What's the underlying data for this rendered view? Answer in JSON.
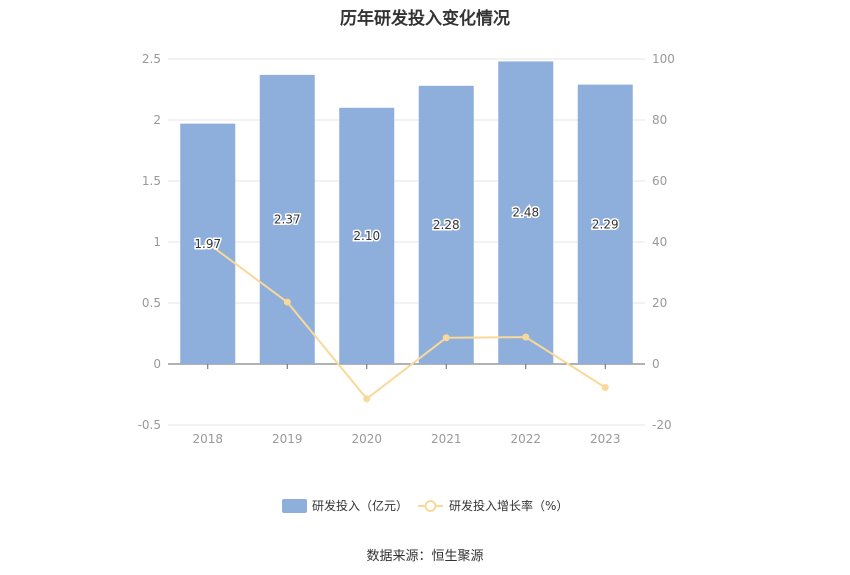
{
  "title": "历年研发投入变化情况",
  "source": "数据来源：恒生聚源",
  "colors": {
    "bar": "#8eaedb",
    "line": "#f8d99a",
    "grid": "#e6e6e6",
    "axis_text": "#999999"
  },
  "chart_data": {
    "type": "bar",
    "categories": [
      "2018",
      "2019",
      "2020",
      "2021",
      "2022",
      "2023"
    ],
    "series": [
      {
        "name": "研发投入（亿元）",
        "type": "bar",
        "axis": "left",
        "values": [
          1.97,
          2.37,
          2.1,
          2.28,
          2.48,
          2.29
        ],
        "labels": [
          "1.97",
          "2.37",
          "2.10",
          "2.28",
          "2.48",
          "2.29"
        ]
      },
      {
        "name": "研发投入增长率（%）",
        "type": "line",
        "axis": "right",
        "values": [
          39.6,
          20.3,
          -11.4,
          8.6,
          8.8,
          -7.7
        ]
      }
    ],
    "y_left": {
      "min": -0.5,
      "max": 2.5,
      "ticks": [
        "2.5",
        "2",
        "1.5",
        "1",
        "0.5",
        "0",
        "-0.5"
      ]
    },
    "y_right": {
      "min": -20,
      "max": 100,
      "ticks": [
        "100",
        "80",
        "60",
        "40",
        "20",
        "0",
        "-20"
      ]
    },
    "legend_position": "bottom-center",
    "grid": true
  }
}
